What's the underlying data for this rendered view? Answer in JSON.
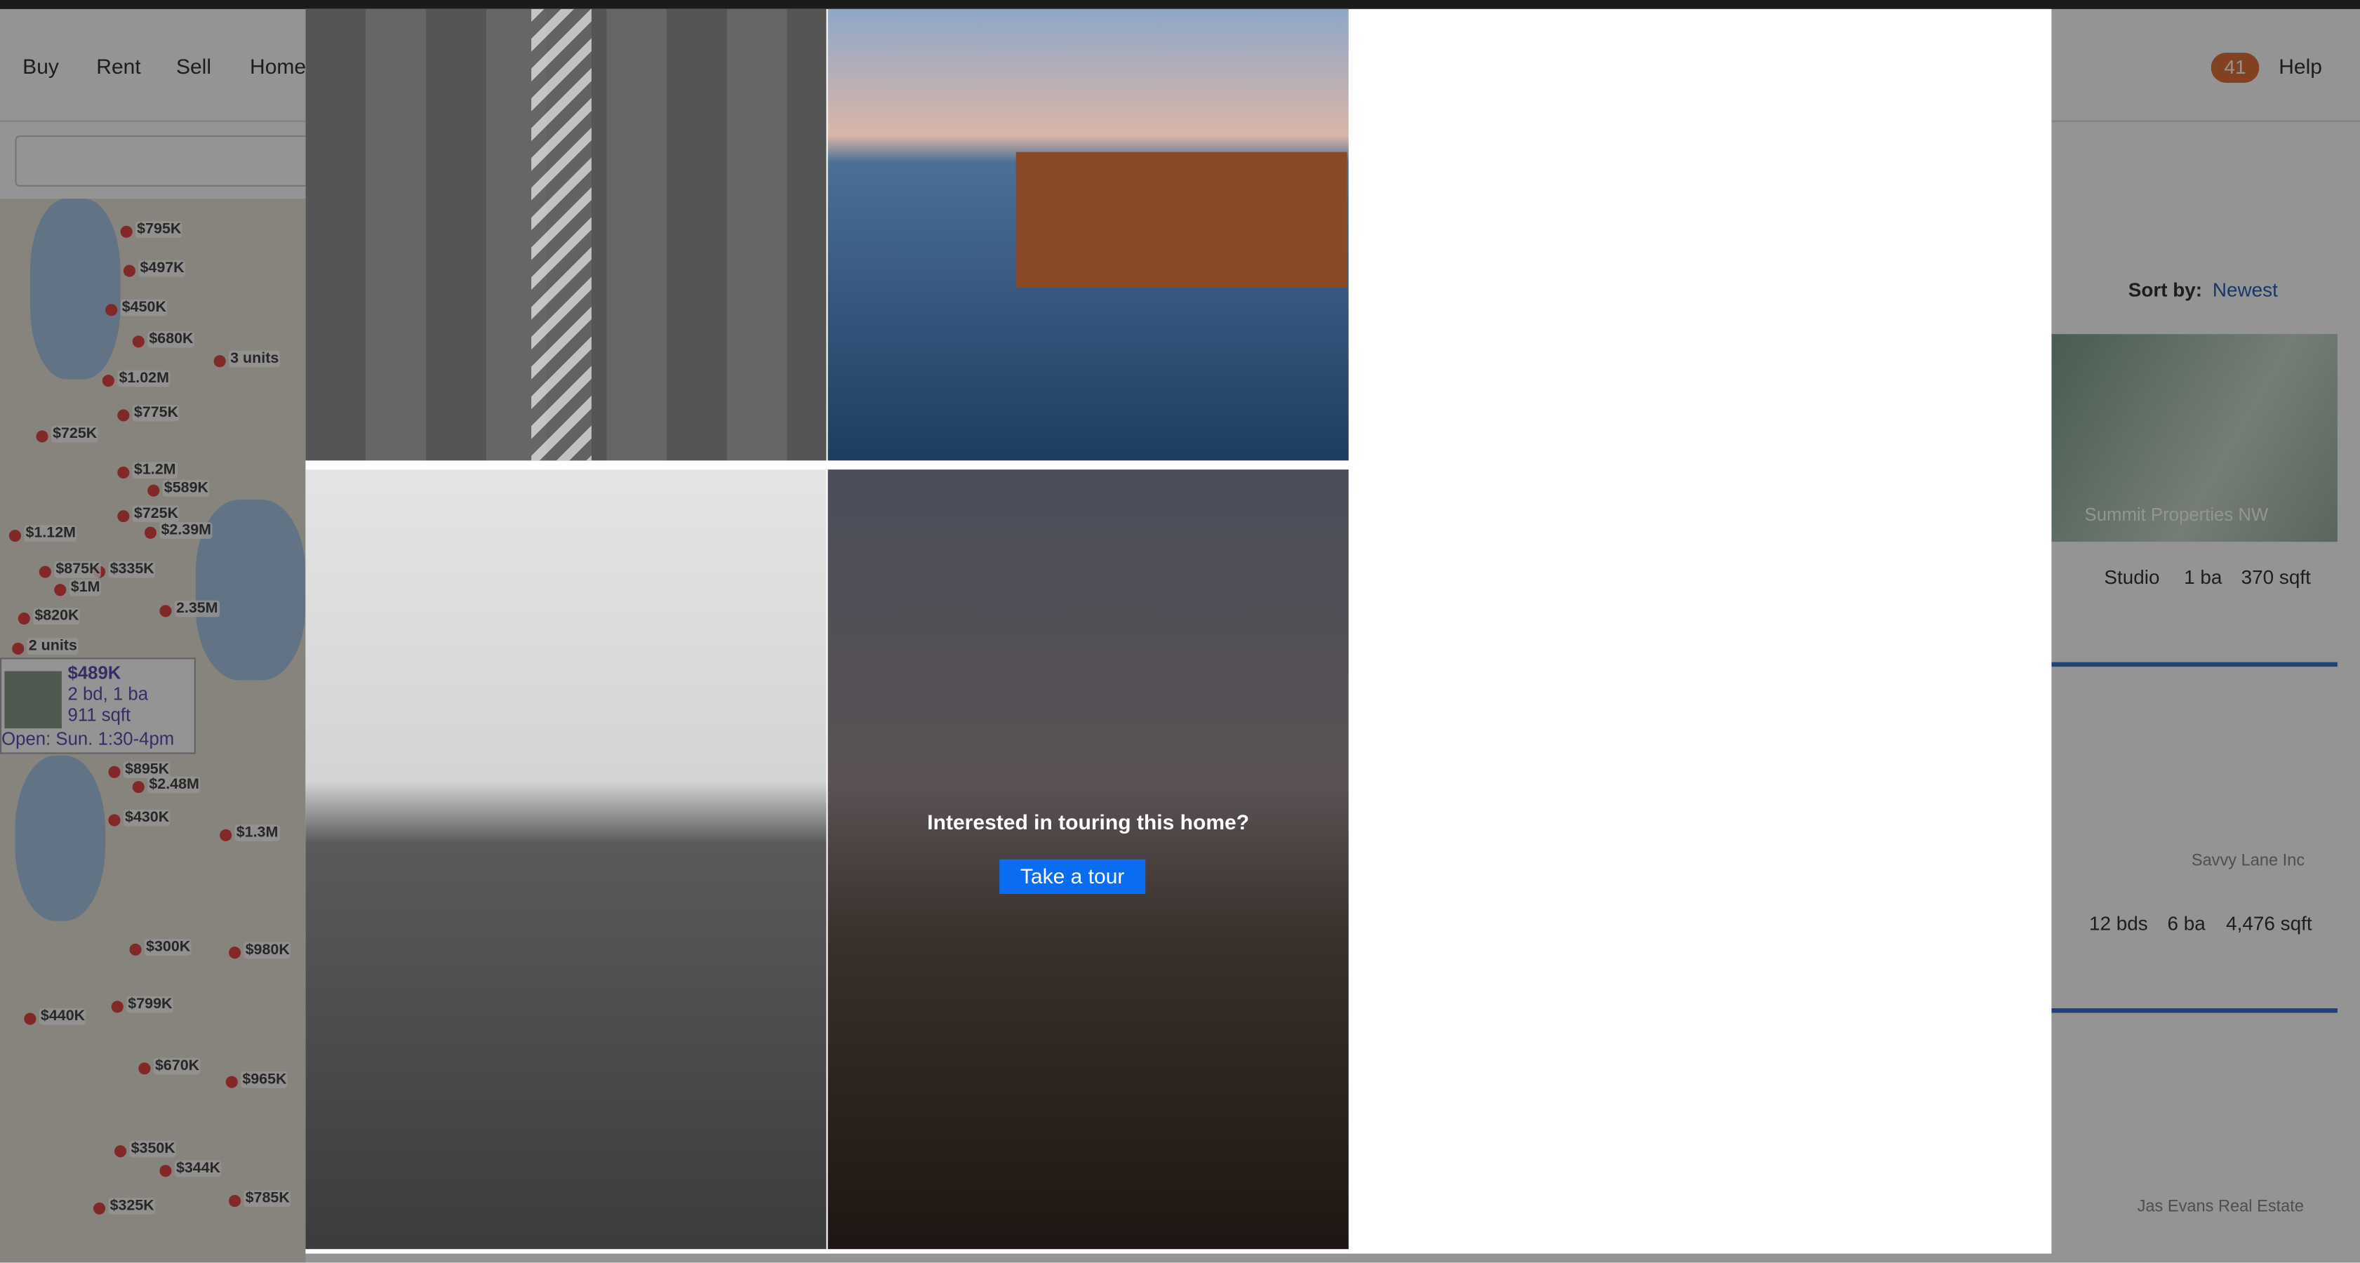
{
  "nav": {
    "items": [
      "Buy",
      "Rent",
      "Sell",
      "Home"
    ],
    "help": "Help",
    "badge": "41"
  },
  "map": {
    "labels": [
      "$795K",
      "$497K",
      "$450K",
      "$680K",
      "3 units",
      "$1.02M",
      "$725K",
      "$775K",
      "$1.2M",
      "$589K",
      "$725K",
      "$2.39M",
      "$1.12M",
      "$335K",
      "$875K",
      "$1M",
      "$820K",
      "2.35M",
      "2 units",
      "$895K",
      "$2.48M",
      "$430K",
      "$1.3M",
      "$300K",
      "$980K",
      "$799K",
      "$440K",
      "$670K",
      "$965K",
      "$350K",
      "$344K",
      "$325K",
      "$785K"
    ],
    "popup": {
      "price": "$489K",
      "details": "2 bd, 1 ba",
      "size": "911 sqft",
      "open": "Open: Sun. 1:30-4pm"
    }
  },
  "listings": {
    "sort_label": "Sort by:",
    "sort_value": "Newest",
    "items": [
      {
        "brand": "Summit Properties NW",
        "beds": "Studio",
        "baths": "1 ba",
        "size": "370 sqft"
      },
      {
        "beds": "12 bds",
        "baths": "6 ba",
        "size": "4,476 sqft",
        "agent": "Savvy Lane Inc"
      },
      {
        "agent": "Jas Evans Real Estate"
      }
    ]
  },
  "modal": {
    "prompt": "Interested in touring this home?",
    "button": "Take a tour"
  }
}
